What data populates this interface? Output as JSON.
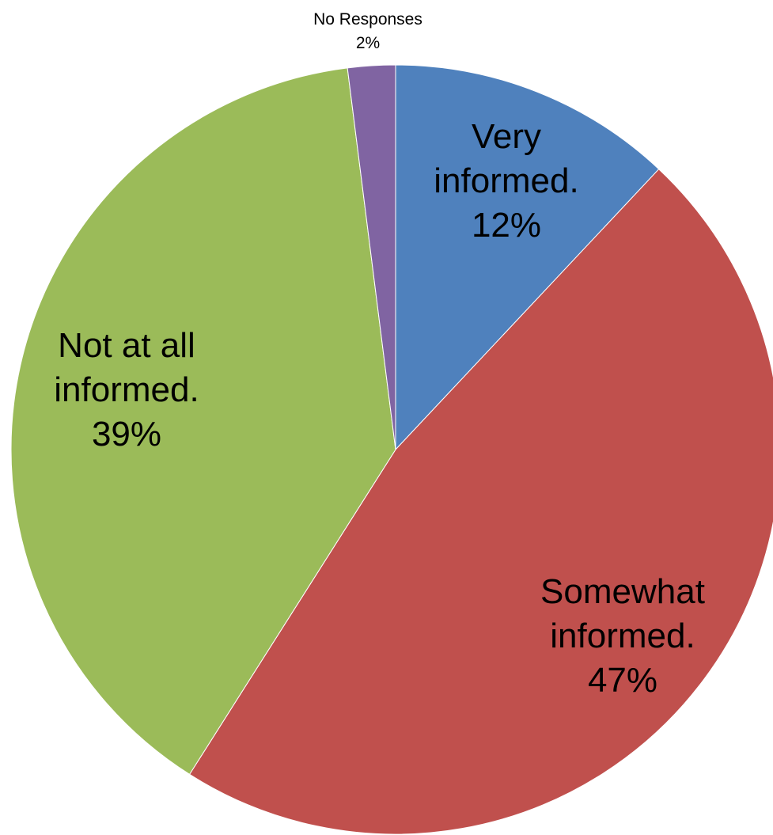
{
  "chart_data": {
    "type": "pie",
    "title": "",
    "slices": [
      {
        "label_lines": [
          "Very",
          "informed."
        ],
        "percent_label": "12%",
        "value": 12,
        "color": "#4f81bd"
      },
      {
        "label_lines": [
          "Somewhat",
          "informed."
        ],
        "percent_label": "47%",
        "value": 47,
        "color": "#c0504d"
      },
      {
        "label_lines": [
          "Not at all",
          "informed."
        ],
        "percent_label": "39%",
        "value": 39,
        "color": "#9bbb59"
      },
      {
        "label_lines": [
          "No Responses"
        ],
        "percent_label": "2%",
        "value": 2,
        "color": "#8064a2"
      }
    ],
    "start_angle": "12 o'clock",
    "direction": "clockwise",
    "legend": "none"
  }
}
